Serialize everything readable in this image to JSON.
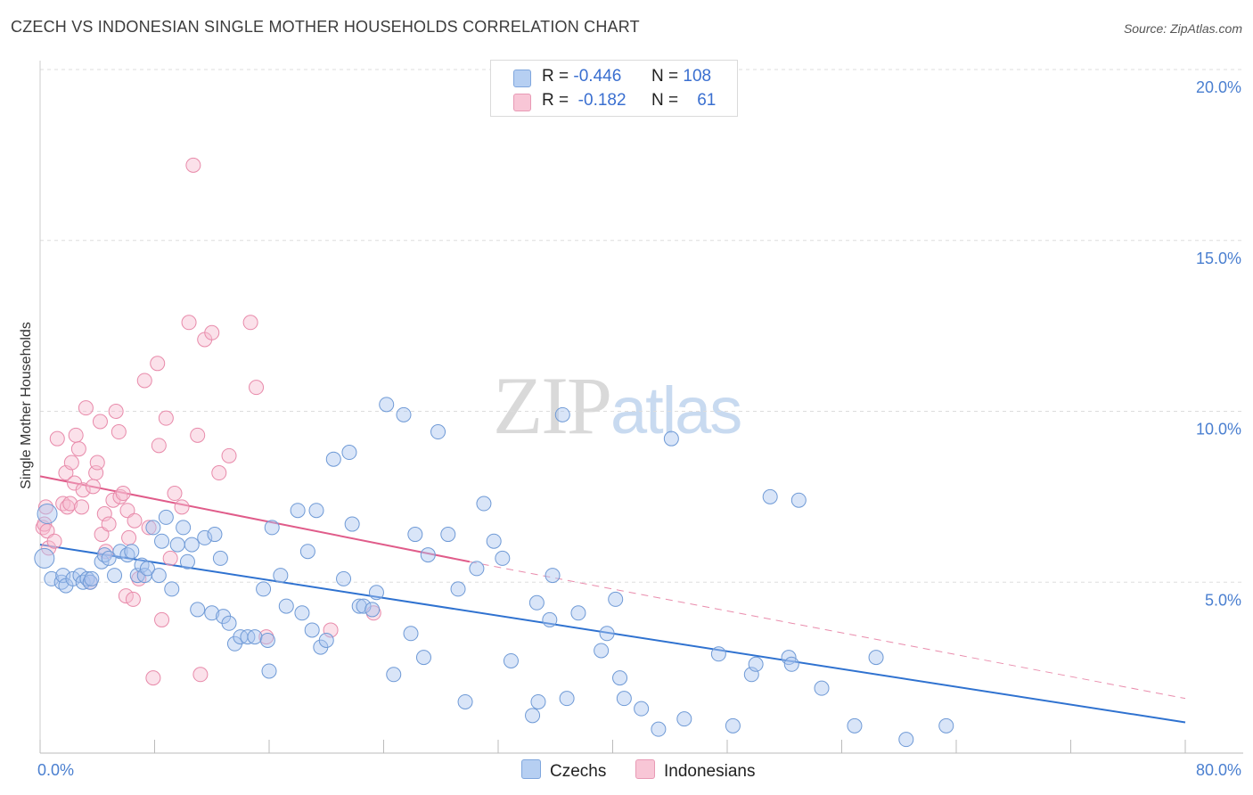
{
  "header": {
    "title": "CZECH VS INDONESIAN SINGLE MOTHER HOUSEHOLDS CORRELATION CHART",
    "source": "Source: ZipAtlas.com"
  },
  "watermark": {
    "zip": "ZIP",
    "atlas": "atlas"
  },
  "legend": {
    "czechs": {
      "r_label": "R =",
      "r_value": "-0.446",
      "n_label": "N =",
      "n_value": "108"
    },
    "indonesians": {
      "r_label": "R =",
      "r_value": "-0.182",
      "n_label": "N =",
      "n_value": "61"
    }
  },
  "colors": {
    "czech_fill": "#aac6f0",
    "czech_stroke": "#6f9ad6",
    "czech_line": "#2f72d0",
    "indo_fill": "#f6bcd0",
    "indo_stroke": "#e88aaa",
    "indo_line": "#e05c8a",
    "axis_text": "#4a7fd0",
    "grid": "#dddddd"
  },
  "chart_data": {
    "type": "scatter",
    "title": "CZECH VS INDONESIAN SINGLE MOTHER HOUSEHOLDS CORRELATION CHART",
    "xlabel": "",
    "ylabel": "Single Mother Households",
    "xlim": [
      0,
      80
    ],
    "ylim": [
      0,
      20
    ],
    "x_tick_labels": [
      "0.0%",
      "80.0%"
    ],
    "y_ticks": [
      5,
      10,
      15,
      20
    ],
    "y_tick_labels": [
      "5.0%",
      "10.0%",
      "15.0%",
      "20.0%"
    ],
    "series": [
      {
        "name": "Czechs",
        "r": -0.446,
        "n": 108,
        "trend": {
          "x0": 0,
          "y0": 6.1,
          "x1": 80,
          "y1": 0.9,
          "style": "solid"
        },
        "points": [
          [
            0.3,
            5.7
          ],
          [
            0.5,
            7.0
          ],
          [
            0.8,
            5.1
          ],
          [
            1.5,
            5.0
          ],
          [
            1.6,
            5.2
          ],
          [
            1.8,
            4.9
          ],
          [
            2.3,
            5.1
          ],
          [
            2.8,
            5.2
          ],
          [
            3.0,
            5.0
          ],
          [
            3.3,
            5.1
          ],
          [
            3.5,
            5.0
          ],
          [
            3.6,
            5.1
          ],
          [
            4.3,
            5.6
          ],
          [
            4.5,
            5.8
          ],
          [
            4.8,
            5.7
          ],
          [
            5.2,
            5.2
          ],
          [
            5.6,
            5.9
          ],
          [
            6.1,
            5.8
          ],
          [
            6.4,
            5.9
          ],
          [
            6.8,
            5.2
          ],
          [
            7.1,
            5.5
          ],
          [
            7.3,
            5.2
          ],
          [
            7.5,
            5.4
          ],
          [
            7.9,
            6.6
          ],
          [
            8.3,
            5.2
          ],
          [
            8.5,
            6.2
          ],
          [
            8.8,
            6.9
          ],
          [
            9.2,
            4.8
          ],
          [
            9.6,
            6.1
          ],
          [
            10.0,
            6.6
          ],
          [
            10.3,
            5.6
          ],
          [
            10.6,
            6.1
          ],
          [
            11.0,
            4.2
          ],
          [
            11.5,
            6.3
          ],
          [
            12.0,
            4.1
          ],
          [
            12.2,
            6.4
          ],
          [
            12.6,
            5.7
          ],
          [
            12.8,
            4.0
          ],
          [
            13.2,
            3.8
          ],
          [
            13.6,
            3.2
          ],
          [
            14.0,
            3.4
          ],
          [
            14.5,
            3.4
          ],
          [
            15.0,
            3.4
          ],
          [
            15.6,
            4.8
          ],
          [
            15.9,
            3.3
          ],
          [
            16.0,
            2.4
          ],
          [
            16.2,
            6.6
          ],
          [
            16.8,
            5.2
          ],
          [
            17.2,
            4.3
          ],
          [
            18.0,
            7.1
          ],
          [
            18.3,
            4.1
          ],
          [
            18.7,
            5.9
          ],
          [
            19.0,
            3.6
          ],
          [
            19.3,
            7.1
          ],
          [
            19.6,
            3.1
          ],
          [
            20.0,
            3.3
          ],
          [
            20.5,
            8.6
          ],
          [
            21.2,
            5.1
          ],
          [
            21.6,
            8.8
          ],
          [
            21.8,
            6.7
          ],
          [
            22.3,
            4.3
          ],
          [
            22.6,
            4.3
          ],
          [
            23.2,
            4.2
          ],
          [
            23.5,
            4.7
          ],
          [
            24.2,
            10.2
          ],
          [
            24.7,
            2.3
          ],
          [
            25.4,
            9.9
          ],
          [
            25.9,
            3.5
          ],
          [
            26.2,
            6.4
          ],
          [
            26.8,
            2.8
          ],
          [
            27.1,
            5.8
          ],
          [
            27.8,
            9.4
          ],
          [
            28.5,
            6.4
          ],
          [
            29.2,
            4.8
          ],
          [
            29.7,
            1.5
          ],
          [
            30.5,
            5.4
          ],
          [
            31.0,
            7.3
          ],
          [
            31.7,
            6.2
          ],
          [
            32.3,
            5.7
          ],
          [
            32.9,
            2.7
          ],
          [
            34.4,
            1.1
          ],
          [
            34.7,
            4.4
          ],
          [
            34.8,
            1.5
          ],
          [
            35.6,
            3.9
          ],
          [
            35.8,
            5.2
          ],
          [
            36.5,
            9.9
          ],
          [
            36.8,
            1.6
          ],
          [
            37.6,
            4.1
          ],
          [
            39.2,
            3.0
          ],
          [
            39.6,
            3.5
          ],
          [
            40.2,
            4.5
          ],
          [
            40.5,
            2.2
          ],
          [
            40.8,
            1.6
          ],
          [
            42.0,
            1.3
          ],
          [
            43.2,
            0.7
          ],
          [
            44.1,
            9.2
          ],
          [
            45.0,
            1.0
          ],
          [
            47.4,
            2.9
          ],
          [
            48.4,
            0.8
          ],
          [
            49.7,
            2.3
          ],
          [
            50.0,
            2.6
          ],
          [
            51.0,
            7.5
          ],
          [
            52.3,
            2.8
          ],
          [
            52.5,
            2.6
          ],
          [
            53.0,
            7.4
          ],
          [
            54.6,
            1.9
          ],
          [
            56.9,
            0.8
          ],
          [
            58.4,
            2.8
          ],
          [
            60.5,
            0.4
          ],
          [
            63.3,
            0.8
          ]
        ]
      },
      {
        "name": "Indonesians",
        "r": -0.182,
        "n": 61,
        "trend": {
          "x0": 0,
          "y0": 8.1,
          "x1": 30,
          "y1": 5.6,
          "dash_to_x": 80,
          "dash_to_y": 1.6,
          "style": "solid+dashed"
        },
        "points": [
          [
            0.2,
            6.6
          ],
          [
            0.3,
            6.7
          ],
          [
            0.4,
            7.2
          ],
          [
            0.5,
            6.5
          ],
          [
            0.6,
            6.0
          ],
          [
            1.0,
            6.2
          ],
          [
            1.2,
            9.2
          ],
          [
            1.6,
            7.3
          ],
          [
            1.8,
            8.2
          ],
          [
            1.9,
            7.2
          ],
          [
            2.1,
            7.3
          ],
          [
            2.2,
            8.5
          ],
          [
            2.4,
            7.9
          ],
          [
            2.5,
            9.3
          ],
          [
            2.7,
            8.9
          ],
          [
            2.9,
            7.2
          ],
          [
            3.0,
            7.7
          ],
          [
            3.2,
            10.1
          ],
          [
            3.5,
            5.0
          ],
          [
            3.7,
            7.8
          ],
          [
            3.9,
            8.2
          ],
          [
            4.0,
            8.5
          ],
          [
            4.2,
            9.7
          ],
          [
            4.3,
            6.4
          ],
          [
            4.5,
            7.0
          ],
          [
            4.6,
            5.9
          ],
          [
            4.8,
            6.7
          ],
          [
            5.1,
            7.4
          ],
          [
            5.3,
            10.0
          ],
          [
            5.5,
            9.4
          ],
          [
            5.6,
            7.5
          ],
          [
            5.8,
            7.6
          ],
          [
            6.0,
            4.6
          ],
          [
            6.1,
            7.1
          ],
          [
            6.2,
            6.3
          ],
          [
            6.5,
            4.5
          ],
          [
            6.6,
            6.8
          ],
          [
            6.9,
            5.1
          ],
          [
            7.3,
            10.9
          ],
          [
            7.6,
            6.6
          ],
          [
            7.9,
            2.2
          ],
          [
            8.2,
            11.4
          ],
          [
            8.3,
            9.0
          ],
          [
            8.5,
            3.9
          ],
          [
            8.8,
            9.8
          ],
          [
            9.1,
            5.7
          ],
          [
            9.4,
            7.6
          ],
          [
            9.9,
            7.2
          ],
          [
            10.4,
            12.6
          ],
          [
            10.7,
            17.2
          ],
          [
            11.0,
            9.3
          ],
          [
            11.2,
            2.3
          ],
          [
            11.5,
            12.1
          ],
          [
            12.0,
            12.3
          ],
          [
            12.5,
            8.2
          ],
          [
            13.2,
            8.7
          ],
          [
            14.7,
            12.6
          ],
          [
            15.1,
            10.7
          ],
          [
            15.8,
            3.4
          ],
          [
            20.3,
            3.6
          ],
          [
            23.3,
            4.1
          ]
        ]
      }
    ]
  }
}
